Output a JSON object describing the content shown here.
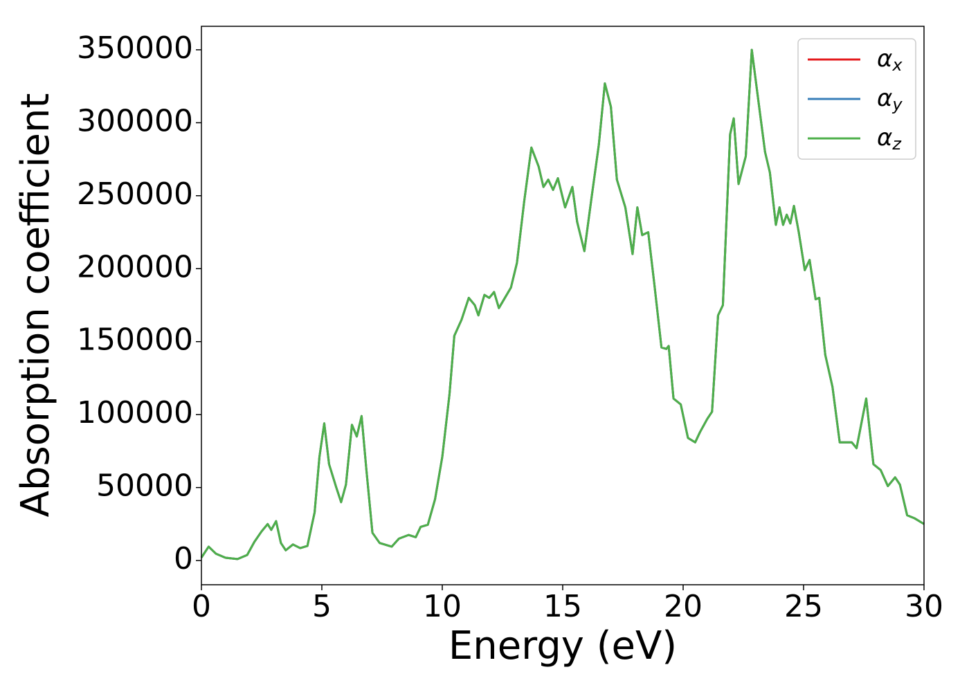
{
  "chart_data": {
    "type": "line",
    "xlabel": "Energy (eV)",
    "ylabel": "Absorption coefficient",
    "x": [
      0,
      0.3,
      0.6,
      1.0,
      1.5,
      1.9,
      2.2,
      2.5,
      2.75,
      2.9,
      3.1,
      3.3,
      3.5,
      3.8,
      4.1,
      4.4,
      4.7,
      4.9,
      5.1,
      5.3,
      5.6,
      5.8,
      6.0,
      6.25,
      6.45,
      6.65,
      6.85,
      7.1,
      7.4,
      7.9,
      8.2,
      8.6,
      8.9,
      9.1,
      9.4,
      9.7,
      10.0,
      10.3,
      10.5,
      10.8,
      11.1,
      11.35,
      11.5,
      11.75,
      11.95,
      12.15,
      12.35,
      12.6,
      12.85,
      13.1,
      13.4,
      13.7,
      14.0,
      14.2,
      14.4,
      14.6,
      14.8,
      15.1,
      15.4,
      15.6,
      15.9,
      16.2,
      16.5,
      16.75,
      17.0,
      17.25,
      17.6,
      17.9,
      18.1,
      18.3,
      18.55,
      18.8,
      19.1,
      19.3,
      19.4,
      19.6,
      19.9,
      20.2,
      20.5,
      20.7,
      21.0,
      21.2,
      21.45,
      21.65,
      21.95,
      22.1,
      22.3,
      22.6,
      22.85,
      23.1,
      23.4,
      23.6,
      23.85,
      24.0,
      24.15,
      24.3,
      24.45,
      24.6,
      24.8,
      25.05,
      25.25,
      25.5,
      25.65,
      25.9,
      26.2,
      26.5,
      26.8,
      27.0,
      27.2,
      27.6,
      27.9,
      28.2,
      28.5,
      28.8,
      29.0,
      29.3,
      29.6,
      30.0
    ],
    "series": [
      {
        "name": "αx",
        "color": "#e41a1c",
        "values": [
          2000,
          9500,
          4700,
          1900,
          1000,
          3800,
          12800,
          20000,
          25000,
          21000,
          27000,
          12000,
          7000,
          11000,
          8500,
          10000,
          33000,
          71000,
          94000,
          66000,
          50000,
          40000,
          52000,
          93000,
          85000,
          99000,
          62000,
          19000,
          12000,
          9500,
          15000,
          17500,
          16000,
          23000,
          24500,
          42000,
          71000,
          114000,
          154000,
          165000,
          180000,
          175000,
          168000,
          182000,
          180000,
          184000,
          173000,
          180000,
          187000,
          204000,
          246000,
          283000,
          270000,
          256000,
          261000,
          254000,
          262000,
          242000,
          256000,
          232000,
          212000,
          249000,
          285000,
          327000,
          311000,
          261000,
          242000,
          210000,
          242000,
          223000,
          225000,
          190000,
          146000,
          145000,
          147000,
          111000,
          107000,
          84000,
          81000,
          88000,
          97000,
          102000,
          168000,
          175000,
          292000,
          303000,
          258000,
          277000,
          350000,
          318000,
          280000,
          266000,
          230000,
          242000,
          230000,
          237000,
          231000,
          243000,
          225000,
          199000,
          206000,
          179000,
          180000,
          141000,
          119000,
          81000,
          81000,
          81000,
          77000,
          111000,
          66000,
          62000,
          51000,
          57000,
          52000,
          31000,
          29000,
          25000
        ]
      },
      {
        "name": "αy",
        "color": "#377eb8",
        "values": [
          2000,
          9500,
          4700,
          1900,
          1000,
          3800,
          12800,
          20000,
          25000,
          21000,
          27000,
          12000,
          7000,
          11000,
          8500,
          10000,
          33000,
          71000,
          94000,
          66000,
          50000,
          40000,
          52000,
          93000,
          85000,
          99000,
          62000,
          19000,
          12000,
          9500,
          15000,
          17500,
          16000,
          23000,
          24500,
          42000,
          71000,
          114000,
          154000,
          165000,
          180000,
          175000,
          168000,
          182000,
          180000,
          184000,
          173000,
          180000,
          187000,
          204000,
          246000,
          283000,
          270000,
          256000,
          261000,
          254000,
          262000,
          242000,
          256000,
          232000,
          212000,
          249000,
          285000,
          327000,
          311000,
          261000,
          242000,
          210000,
          242000,
          223000,
          225000,
          190000,
          146000,
          145000,
          147000,
          111000,
          107000,
          84000,
          81000,
          88000,
          97000,
          102000,
          168000,
          175000,
          292000,
          303000,
          258000,
          277000,
          350000,
          318000,
          280000,
          266000,
          230000,
          242000,
          230000,
          237000,
          231000,
          243000,
          225000,
          199000,
          206000,
          179000,
          180000,
          141000,
          119000,
          81000,
          81000,
          81000,
          77000,
          111000,
          66000,
          62000,
          51000,
          57000,
          52000,
          31000,
          29000,
          25000
        ]
      },
      {
        "name": "αz",
        "color": "#4daf4a",
        "values": [
          2000,
          9500,
          4700,
          1900,
          1000,
          3800,
          12800,
          20000,
          25000,
          21000,
          27000,
          12000,
          7000,
          11000,
          8500,
          10000,
          33000,
          71000,
          94000,
          66000,
          50000,
          40000,
          52000,
          93000,
          85000,
          99000,
          62000,
          19000,
          12000,
          9500,
          15000,
          17500,
          16000,
          23000,
          24500,
          42000,
          71000,
          114000,
          154000,
          165000,
          180000,
          175000,
          168000,
          182000,
          180000,
          184000,
          173000,
          180000,
          187000,
          204000,
          246000,
          283000,
          270000,
          256000,
          261000,
          254000,
          262000,
          242000,
          256000,
          232000,
          212000,
          249000,
          285000,
          327000,
          311000,
          261000,
          242000,
          210000,
          242000,
          223000,
          225000,
          190000,
          146000,
          145000,
          147000,
          111000,
          107000,
          84000,
          81000,
          88000,
          97000,
          102000,
          168000,
          175000,
          292000,
          303000,
          258000,
          277000,
          350000,
          318000,
          280000,
          266000,
          230000,
          242000,
          230000,
          237000,
          231000,
          243000,
          225000,
          199000,
          206000,
          179000,
          180000,
          141000,
          119000,
          81000,
          81000,
          81000,
          77000,
          111000,
          66000,
          62000,
          51000,
          57000,
          52000,
          31000,
          29000,
          25000
        ]
      }
    ],
    "xlim": [
      0,
      30
    ],
    "xticks": [
      0,
      5,
      10,
      15,
      20,
      25,
      30
    ],
    "ylim": [
      -16600,
      366100
    ],
    "yticks": [
      0,
      50000,
      100000,
      150000,
      200000,
      250000,
      300000,
      350000
    ],
    "grid": false,
    "legend": "upper right"
  }
}
